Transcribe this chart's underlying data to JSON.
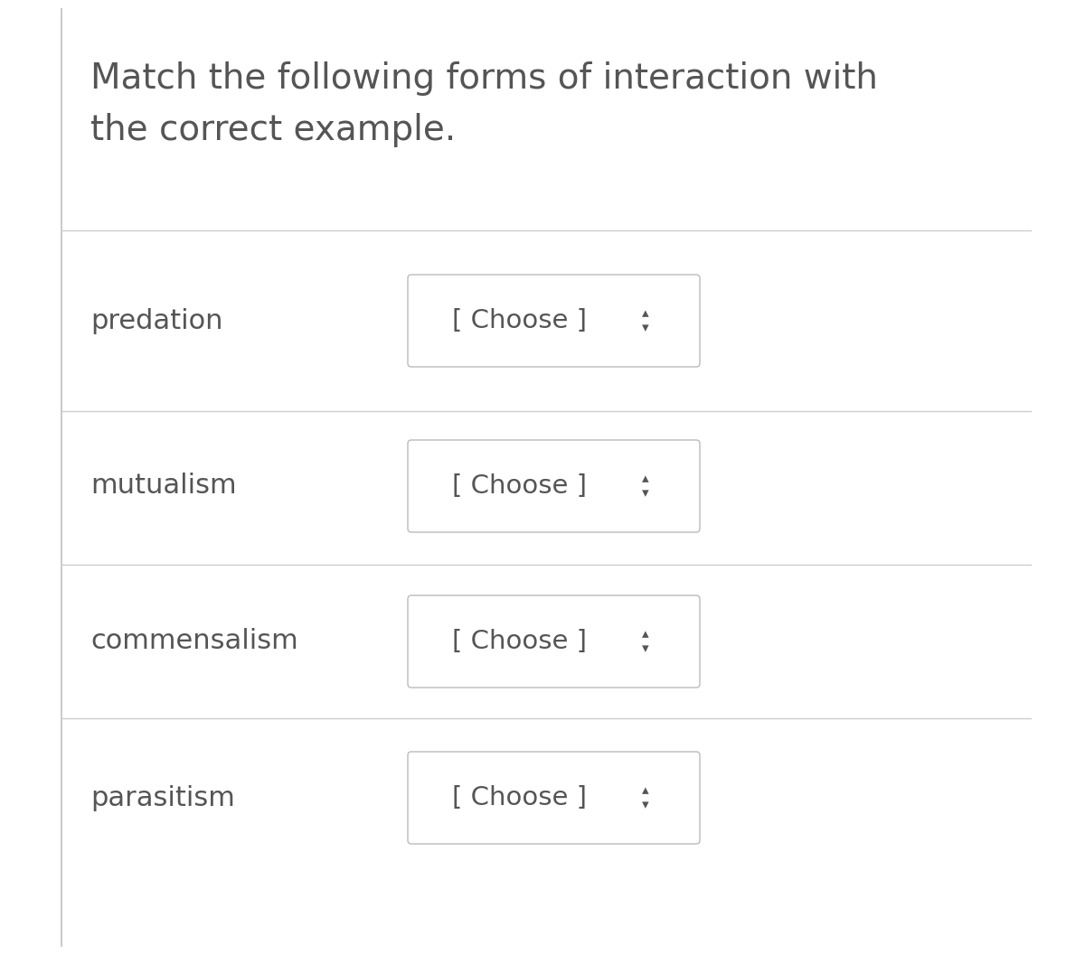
{
  "title_line1": "Match the following forms of interaction with",
  "title_line2": "the correct example.",
  "background_color": "#ffffff",
  "panel_color": "#ffffff",
  "text_color": "#555555",
  "label_color": "#555555",
  "choose_color": "#555555",
  "divider_color": "#cccccc",
  "left_bar_color": "#cccccc",
  "rows": [
    {
      "label": "predation",
      "button_text": "[ Choose ]"
    },
    {
      "label": "mutualism",
      "button_text": "[ Choose ]"
    },
    {
      "label": "commensalism",
      "button_text": "[ Choose ]"
    },
    {
      "label": "parasitism",
      "button_text": "[ Choose ]"
    }
  ],
  "title_fontsize": 28,
  "label_fontsize": 22,
  "choose_fontsize": 21,
  "arrow_fontsize": 14
}
